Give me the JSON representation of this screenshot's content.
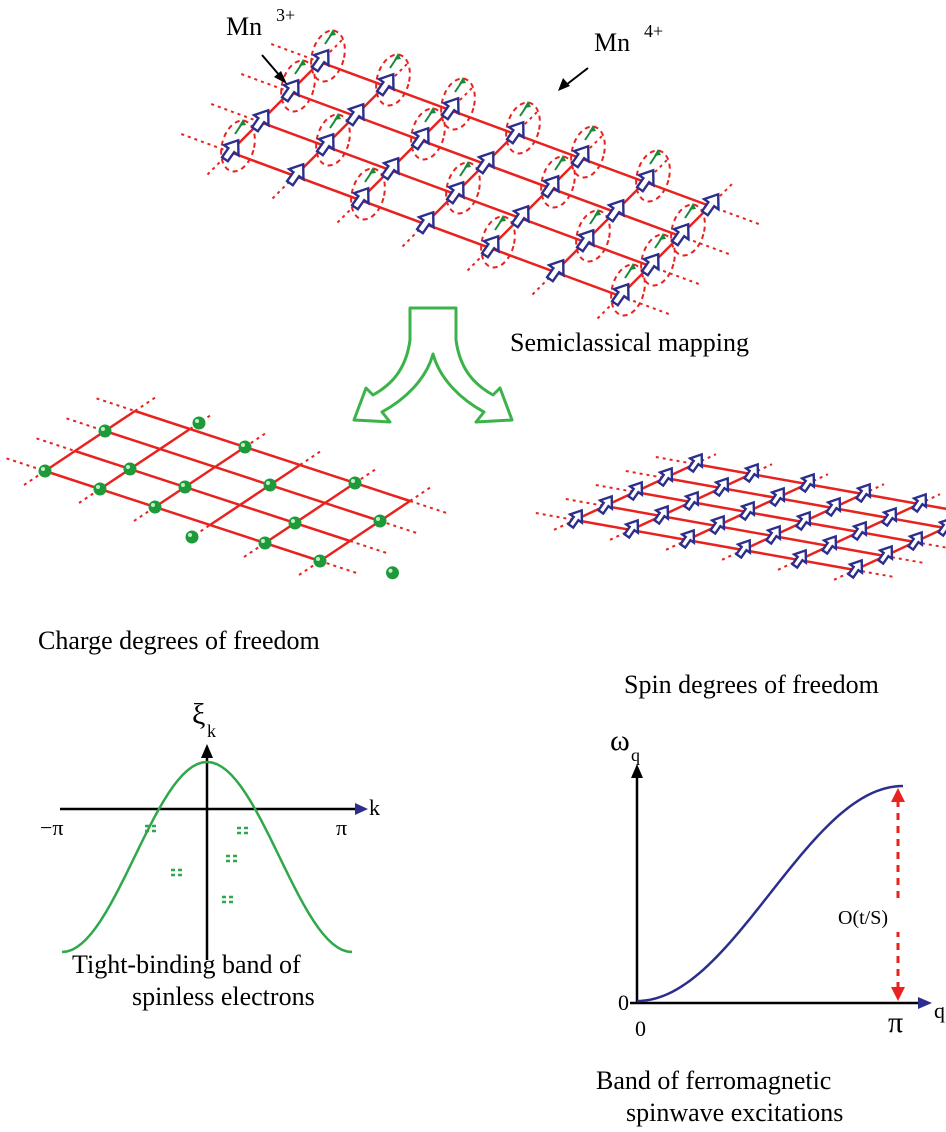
{
  "colors": {
    "lattice": "#e8231f",
    "spin": "#2b2e8c",
    "moment": "#1a8a3a",
    "charge": "#1f9a3a",
    "band": "#2ea84a",
    "spinwave": "#2b2e8c",
    "mapping_arrow": "#3cb24a",
    "gap_arrow": "#e8231f"
  },
  "icons": {
    "spin": "hollow-arrow",
    "charge": "green-ball",
    "mapping": "split-arrow"
  },
  "top": {
    "mn3_base": "Mn",
    "mn3_sup": "3+",
    "mn4_base": "Mn",
    "mn4_sup": "4+"
  },
  "mapping_label": "Semiclassical mapping",
  "charge_label": "Charge degrees of freedom",
  "spin_label": "Spin degrees of freedom",
  "band_plot": {
    "y_symbol": "ξ",
    "y_sub": "k",
    "x_symbol": "k",
    "x_min_label": "−π",
    "x_max_label": "π",
    "caption_line1": "Tight-binding band of",
    "caption_line2": "spinless electrons"
  },
  "spinwave_plot": {
    "y_symbol": "ω",
    "y_sub": "q",
    "x_symbol": "q",
    "x_origin_label": "0",
    "y_origin_label": "0",
    "x_max_label": "π",
    "gap_label": "O(t/S)",
    "caption_line1": "Band of ferromagnetic",
    "caption_line2": "spinwave excitations"
  }
}
